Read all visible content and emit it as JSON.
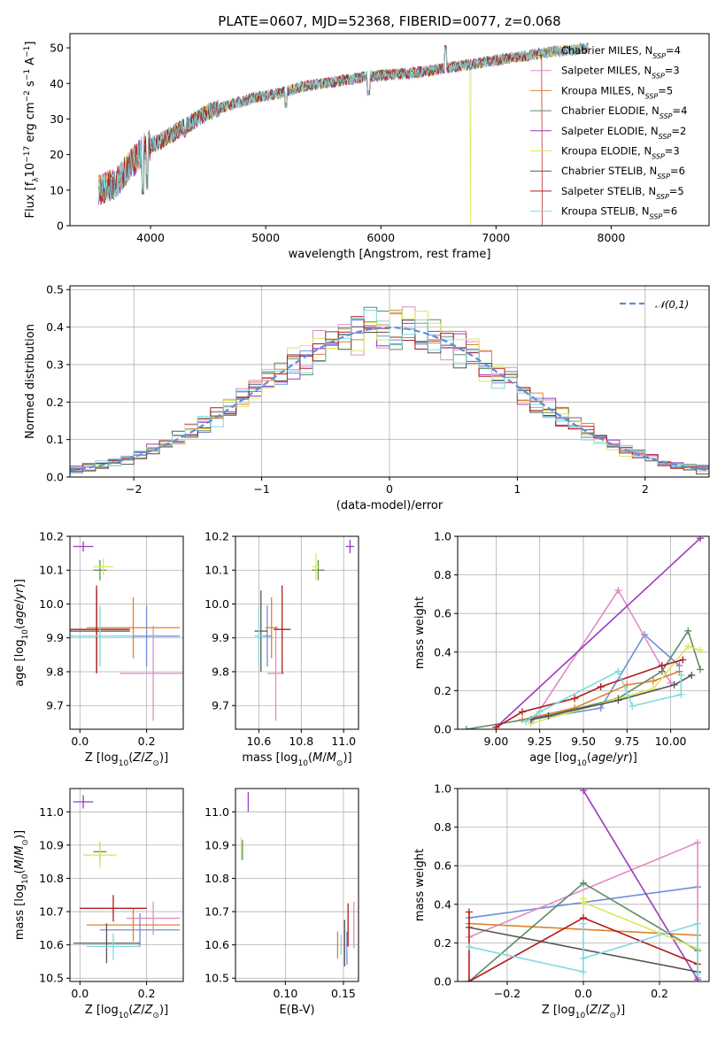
{
  "title": "PLATE=0607, MJD=52368, FIBERID=0077, z=0.068",
  "colors": {
    "Chabrier MILES": "#6f8fd6",
    "Salpeter MILES": "#e28bc6",
    "Kroupa MILES": "#e0802e",
    "Chabrier ELODIE": "#5e8c64",
    "Salpeter ELODIE": "#9b3bbd",
    "Kroupa ELODIE": "#d9e85a",
    "Chabrier STELIB": "#555555",
    "Salpeter STELIB": "#b31b1b",
    "Kroupa STELIB": "#7fd9e0",
    "gauss": "#5b8fd6"
  },
  "chart_data": [
    {
      "id": "spectrum",
      "type": "line",
      "xlabel": "wavelength [Angstrom, rest frame]",
      "ylabel": "Flux [f_λ10^-17 erg cm^-2 s^-1 A^-1]",
      "xlim": [
        3300,
        8850
      ],
      "ylim": [
        0,
        54
      ],
      "xticks": [
        4000,
        5000,
        6000,
        7000,
        8000
      ],
      "yticks": [
        0,
        10,
        20,
        30,
        40,
        50
      ],
      "legend_placement": "upper-right",
      "legend": [
        {
          "name": "Chabrier MILES",
          "nssp": "4"
        },
        {
          "name": "Salpeter MILES",
          "nssp": "3"
        },
        {
          "name": "Kroupa MILES",
          "nssp": "5"
        },
        {
          "name": "Chabrier ELODIE",
          "nssp": "4"
        },
        {
          "name": "Salpeter ELODIE",
          "nssp": "2"
        },
        {
          "name": "Kroupa ELODIE",
          "nssp": "3"
        },
        {
          "name": "Chabrier STELIB",
          "nssp": "6"
        },
        {
          "name": "Salpeter STELIB",
          "nssp": "5"
        },
        {
          "name": "Kroupa STELIB",
          "nssp": "6"
        }
      ],
      "continuum": [
        [
          3550,
          10
        ],
        [
          3700,
          12
        ],
        [
          3850,
          18
        ],
        [
          3950,
          22
        ],
        [
          4100,
          24
        ],
        [
          4300,
          28
        ],
        [
          4500,
          32
        ],
        [
          4700,
          34
        ],
        [
          4900,
          36
        ],
        [
          5100,
          37
        ],
        [
          5300,
          39
        ],
        [
          5500,
          40
        ],
        [
          5700,
          41
        ],
        [
          5900,
          42
        ],
        [
          6100,
          42.5
        ],
        [
          6300,
          43
        ],
        [
          6500,
          44
        ],
        [
          6700,
          45
        ],
        [
          6900,
          46
        ],
        [
          7100,
          47
        ],
        [
          7300,
          48
        ],
        [
          7500,
          49
        ],
        [
          7700,
          49.5
        ],
        [
          7800,
          50
        ]
      ],
      "features": [
        [
          3935,
          0
        ],
        [
          3970,
          2
        ],
        [
          4300,
          24
        ],
        [
          5175,
          30
        ],
        [
          5893,
          33
        ],
        [
          6563,
          56
        ]
      ],
      "anomalies": [
        {
          "series": "Kroupa ELODIE",
          "x": 6780,
          "y": 0
        },
        {
          "series": "Salpeter STELIB",
          "x_start": 7400,
          "y": 0
        }
      ]
    },
    {
      "id": "residual-hist",
      "type": "step",
      "xlabel": "(data-model)/error",
      "ylabel": "Normed distribution",
      "xlim": [
        -2.5,
        2.5
      ],
      "ylim": [
        0,
        0.51
      ],
      "xticks": [
        -2,
        -1,
        0,
        1,
        2
      ],
      "yticks": [
        0.0,
        0.1,
        0.2,
        0.3,
        0.4,
        0.5
      ],
      "legend": "𝒩(0,1)",
      "legend_placement": "upper-right",
      "bin_width": 0.1,
      "x_start": -2.5,
      "gaussian": {
        "mu": 0,
        "sigma": 1
      }
    },
    {
      "id": "age-vs-Z",
      "type": "errorbar",
      "xlabel": "Z [log10(Z/Z⊙)]",
      "ylabel": "age [log10(age/yr)]",
      "xlim": [
        -0.03,
        0.31
      ],
      "ylim": [
        9.63,
        10.2
      ],
      "xticks": [
        0.0,
        0.2
      ],
      "yticks": [
        9.7,
        9.8,
        9.9,
        10.0,
        10.1,
        10.2
      ],
      "points": [
        {
          "series": "Chabrier MILES",
          "x": 0.2,
          "y": 9.905,
          "xerr": 0.1,
          "yerr": 0.09
        },
        {
          "series": "Salpeter MILES",
          "x": 0.22,
          "y": 9.795,
          "xerr": 0.1,
          "yerr": 0.14
        },
        {
          "series": "Kroupa MILES",
          "x": 0.16,
          "y": 9.93,
          "xerr": 0.14,
          "yerr": 0.09
        },
        {
          "series": "Chabrier ELODIE",
          "x": 0.06,
          "y": 10.1,
          "xerr": 0.02,
          "yerr": 0.03
        },
        {
          "series": "Salpeter ELODIE",
          "x": 0.01,
          "y": 10.17,
          "xerr": 0.03,
          "yerr": 0.015
        },
        {
          "series": "Kroupa ELODIE",
          "x": 0.07,
          "y": 10.11,
          "xerr": 0.03,
          "yerr": 0.025
        },
        {
          "series": "Chabrier STELIB",
          "x": 0.05,
          "y": 9.92,
          "xerr": 0.1,
          "yerr": 0.12
        },
        {
          "series": "Salpeter STELIB",
          "x": 0.05,
          "y": 9.925,
          "xerr": 0.1,
          "yerr": 0.13
        },
        {
          "series": "Kroupa STELIB",
          "x": 0.06,
          "y": 9.905,
          "xerr": 0.1,
          "yerr": 0.09
        }
      ]
    },
    {
      "id": "age-vs-mass",
      "type": "errorbar",
      "xlabel": "mass [log10(M/M⊙)]",
      "ylabel": "",
      "xlim": [
        10.49,
        11.07
      ],
      "ylim": [
        9.63,
        10.2
      ],
      "xticks": [
        10.6,
        10.8,
        11.0
      ],
      "yticks": [
        9.7,
        9.8,
        9.9,
        10.0,
        10.1,
        10.2
      ],
      "points": [
        {
          "series": "Chabrier MILES",
          "x": 10.64,
          "y": 9.905,
          "xerr": 0.02,
          "yerr": 0.09
        },
        {
          "series": "Salpeter MILES",
          "x": 10.68,
          "y": 9.795,
          "xerr": 0.04,
          "yerr": 0.14
        },
        {
          "series": "Kroupa MILES",
          "x": 10.66,
          "y": 9.93,
          "xerr": 0.03,
          "yerr": 0.09
        },
        {
          "series": "Chabrier ELODIE",
          "x": 10.88,
          "y": 10.1,
          "xerr": 0.03,
          "yerr": 0.03
        },
        {
          "series": "Salpeter ELODIE",
          "x": 11.03,
          "y": 10.17,
          "xerr": 0.02,
          "yerr": 0.02
        },
        {
          "series": "Kroupa ELODIE",
          "x": 10.87,
          "y": 10.11,
          "xerr": 0.02,
          "yerr": 0.04
        },
        {
          "series": "Chabrier STELIB",
          "x": 10.61,
          "y": 9.92,
          "xerr": 0.03,
          "yerr": 0.12
        },
        {
          "series": "Salpeter STELIB",
          "x": 10.71,
          "y": 9.925,
          "xerr": 0.04,
          "yerr": 0.13
        },
        {
          "series": "Kroupa STELIB",
          "x": 10.6,
          "y": 9.905,
          "xerr": 0.02,
          "yerr": 0.09
        }
      ]
    },
    {
      "id": "massweight-vs-age",
      "type": "line",
      "xlabel": "age [log10(age/yr)]",
      "ylabel": "mass weight",
      "xlim": [
        8.78,
        10.22
      ],
      "ylim": [
        0,
        1
      ],
      "xticks": [
        9.0,
        9.25,
        9.5,
        9.75,
        10.0
      ],
      "yticks": [
        0.0,
        0.2,
        0.4,
        0.6,
        0.8,
        1.0
      ],
      "series": [
        {
          "name": "Chabrier MILES",
          "points": [
            [
              9.2,
              0.05
            ],
            [
              9.6,
              0.11
            ],
            [
              9.85,
              0.49
            ],
            [
              10.05,
              0.33
            ]
          ]
        },
        {
          "name": "Salpeter MILES",
          "points": [
            [
              9.2,
              0.03
            ],
            [
              9.7,
              0.72
            ],
            [
              10.0,
              0.24
            ]
          ]
        },
        {
          "name": "Kroupa MILES",
          "points": [
            [
              9.15,
              0.05
            ],
            [
              9.45,
              0.11
            ],
            [
              9.75,
              0.23
            ],
            [
              9.9,
              0.25
            ],
            [
              10.05,
              0.3
            ]
          ]
        },
        {
          "name": "Chabrier ELODIE",
          "points": [
            [
              8.83,
              0.0
            ],
            [
              9.3,
              0.07
            ],
            [
              9.7,
              0.16
            ],
            [
              9.95,
              0.3
            ],
            [
              10.1,
              0.51
            ],
            [
              10.17,
              0.31
            ]
          ]
        },
        {
          "name": "Salpeter ELODIE",
          "points": [
            [
              9.0,
              0.01
            ],
            [
              10.17,
              0.99
            ]
          ]
        },
        {
          "name": "Kroupa ELODIE",
          "points": [
            [
              9.2,
              0.03
            ],
            [
              9.9,
              0.21
            ],
            [
              10.1,
              0.43
            ],
            [
              10.17,
              0.41
            ]
          ]
        },
        {
          "name": "Chabrier STELIB",
          "points": [
            [
              9.2,
              0.05
            ],
            [
              9.3,
              0.07
            ],
            [
              9.7,
              0.15
            ],
            [
              10.02,
              0.23
            ],
            [
              10.12,
              0.28
            ]
          ]
        },
        {
          "name": "Salpeter STELIB",
          "points": [
            [
              9.0,
              0.01
            ],
            [
              9.15,
              0.09
            ],
            [
              9.45,
              0.16
            ],
            [
              9.6,
              0.22
            ],
            [
              9.95,
              0.33
            ],
            [
              10.07,
              0.36
            ]
          ]
        },
        {
          "name": "Kroupa STELIB",
          "points": [
            [
              9.17,
              0.04
            ],
            [
              9.25,
              0.09
            ],
            [
              9.7,
              0.3
            ],
            [
              9.78,
              0.12
            ],
            [
              10.06,
              0.18
            ],
            [
              10.06,
              0.28
            ]
          ]
        }
      ]
    },
    {
      "id": "mass-vs-Z",
      "type": "errorbar",
      "xlabel": "Z [log10(Z/Z⊙)]",
      "ylabel": "mass [log10(M/M⊙)]",
      "xlim": [
        -0.03,
        0.31
      ],
      "ylim": [
        10.49,
        11.07
      ],
      "xticks": [
        0.0,
        0.2
      ],
      "yticks": [
        10.5,
        10.6,
        10.7,
        10.8,
        10.9,
        11.0
      ],
      "points": [
        {
          "series": "Chabrier MILES",
          "x": 0.18,
          "y": 10.645,
          "xerr": 0.12,
          "yerr": 0.05
        },
        {
          "series": "Salpeter MILES",
          "x": 0.22,
          "y": 10.68,
          "xerr": 0.08,
          "yerr": 0.05
        },
        {
          "series": "Kroupa MILES",
          "x": 0.16,
          "y": 10.66,
          "xerr": 0.14,
          "yerr": 0.05
        },
        {
          "series": "Chabrier ELODIE",
          "x": 0.06,
          "y": 10.88,
          "xerr": 0.02,
          "yerr": 0.03
        },
        {
          "series": "Salpeter ELODIE",
          "x": 0.01,
          "y": 11.03,
          "xerr": 0.03,
          "yerr": 0.02
        },
        {
          "series": "Kroupa ELODIE",
          "x": 0.06,
          "y": 10.87,
          "xerr": 0.05,
          "yerr": 0.04
        },
        {
          "series": "Chabrier STELIB",
          "x": 0.08,
          "y": 10.605,
          "xerr": 0.1,
          "yerr": 0.06
        },
        {
          "series": "Salpeter STELIB",
          "x": 0.1,
          "y": 10.71,
          "xerr": 0.1,
          "yerr": 0.04
        },
        {
          "series": "Kroupa STELIB",
          "x": 0.1,
          "y": 10.595,
          "xerr": 0.08,
          "yerr": 0.04
        }
      ]
    },
    {
      "id": "mass-vs-ebv",
      "type": "errorbar",
      "xlabel": "E(B-V)",
      "ylabel": "",
      "xlim": [
        0.057,
        0.163
      ],
      "ylim": [
        10.49,
        11.07
      ],
      "xticks": [
        0.1,
        0.15
      ],
      "yticks": [
        10.5,
        10.6,
        10.7,
        10.8,
        10.9,
        11.0
      ],
      "points": [
        {
          "series": "Chabrier MILES",
          "x": 0.153,
          "y": 10.59,
          "xerr": 0,
          "yerr": 0.05
        },
        {
          "series": "Salpeter MILES",
          "x": 0.159,
          "y": 10.66,
          "xerr": 0,
          "yerr": 0.07
        },
        {
          "series": "Kroupa MILES",
          "x": 0.145,
          "y": 10.6,
          "xerr": 0,
          "yerr": 0.04
        },
        {
          "series": "Chabrier ELODIE",
          "x": 0.063,
          "y": 10.885,
          "xerr": 0,
          "yerr": 0.03
        },
        {
          "series": "Salpeter ELODIE",
          "x": 0.068,
          "y": 11.03,
          "xerr": 0,
          "yerr": 0.03
        },
        {
          "series": "Kroupa ELODIE",
          "x": 0.062,
          "y": 10.89,
          "xerr": 0,
          "yerr": 0.035
        },
        {
          "series": "Chabrier STELIB",
          "x": 0.151,
          "y": 10.605,
          "xerr": 0,
          "yerr": 0.07
        },
        {
          "series": "Salpeter STELIB",
          "x": 0.154,
          "y": 10.66,
          "xerr": 0,
          "yerr": 0.065
        },
        {
          "series": "Kroupa STELIB",
          "x": 0.148,
          "y": 10.6,
          "xerr": 0,
          "yerr": 0.03
        }
      ]
    },
    {
      "id": "massweight-vs-Z",
      "type": "line",
      "xlabel": "Z [log10(Z/Z⊙)]",
      "ylabel": "mass weight",
      "xlim": [
        -0.33,
        0.33
      ],
      "ylim": [
        0,
        1
      ],
      "xticks": [
        -0.2,
        0.0,
        0.2
      ],
      "yticks": [
        0.0,
        0.2,
        0.4,
        0.6,
        0.8,
        1.0
      ],
      "series": [
        {
          "name": "Chabrier MILES",
          "points": [
            [
              -0.3,
              0.33
            ],
            [
              0.3,
              0.49
            ]
          ]
        },
        {
          "name": "Salpeter MILES",
          "points": [
            [
              -0.3,
              0.23
            ],
            [
              0.3,
              0.72
            ],
            [
              0.3,
              0.02
            ]
          ]
        },
        {
          "name": "Kroupa MILES",
          "points": [
            [
              -0.3,
              0.3
            ],
            [
              0.3,
              0.24
            ]
          ]
        },
        {
          "name": "Chabrier ELODIE",
          "points": [
            [
              -0.3,
              0.0
            ],
            [
              0.0,
              0.51
            ],
            [
              0.3,
              0.16
            ]
          ]
        },
        {
          "name": "Salpeter ELODIE",
          "points": [
            [
              0.0,
              0.99
            ],
            [
              0.3,
              0.01
            ]
          ]
        },
        {
          "name": "Kroupa ELODIE",
          "points": [
            [
              0.0,
              0.43
            ],
            [
              0.0,
              0.41
            ],
            [
              0.3,
              0.17
            ]
          ]
        },
        {
          "name": "Chabrier STELIB",
          "points": [
            [
              -0.3,
              0.28
            ],
            [
              0.3,
              0.05
            ]
          ]
        },
        {
          "name": "Salpeter STELIB",
          "points": [
            [
              -0.3,
              0.36
            ],
            [
              -0.3,
              0.0
            ],
            [
              0.0,
              0.33
            ],
            [
              0.3,
              0.09
            ]
          ]
        },
        {
          "name": "Kroupa STELIB",
          "points": [
            [
              -0.3,
              0.18
            ],
            [
              0.0,
              0.05
            ],
            [
              0.0,
              0.3
            ],
            [
              0.0,
              0.12
            ],
            [
              0.3,
              0.3
            ],
            [
              0.3,
              0.04
            ]
          ]
        }
      ]
    }
  ]
}
